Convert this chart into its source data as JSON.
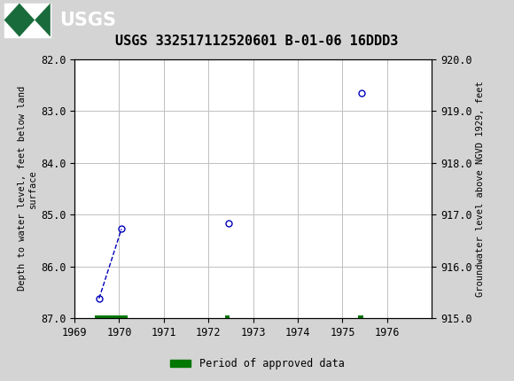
{
  "title": "USGS 332517112520601 B-01-06 16DDD3",
  "title_fontsize": 11,
  "header_color": "#1a6b3c",
  "bg_color": "#d4d4d4",
  "plot_bg_color": "#ffffff",
  "ylabel_left": "Depth to water level, feet below land\nsurface",
  "ylabel_right": "Groundwater level above NGVD 1929, feet",
  "xlim": [
    1969,
    1977
  ],
  "ylim_left_top": 82.0,
  "ylim_left_bottom": 87.0,
  "ylim_right_top": 920.0,
  "ylim_right_bottom": 915.0,
  "xticks": [
    1969,
    1970,
    1971,
    1972,
    1973,
    1974,
    1975,
    1976
  ],
  "yticks_left": [
    82.0,
    83.0,
    84.0,
    85.0,
    86.0,
    87.0
  ],
  "yticks_right": [
    920.0,
    919.0,
    918.0,
    917.0,
    916.0,
    915.0
  ],
  "data_x": [
    1969.55,
    1970.05,
    1972.45,
    1975.42
  ],
  "data_y": [
    86.62,
    85.28,
    85.17,
    82.65
  ],
  "connected_segments": [
    [
      0,
      1
    ]
  ],
  "line_color": "#0000bb",
  "marker_color": "#0000bb",
  "marker_size": 5,
  "green_bars": [
    {
      "x_start": 1969.45,
      "x_end": 1970.18,
      "y_center": 87.0
    },
    {
      "x_start": 1972.38,
      "x_end": 1972.48,
      "y_center": 87.0
    },
    {
      "x_start": 1975.35,
      "x_end": 1975.46,
      "y_center": 87.0
    }
  ],
  "green_color": "#007700",
  "legend_label": "Period of approved data",
  "font_family": "DejaVu Sans Mono"
}
